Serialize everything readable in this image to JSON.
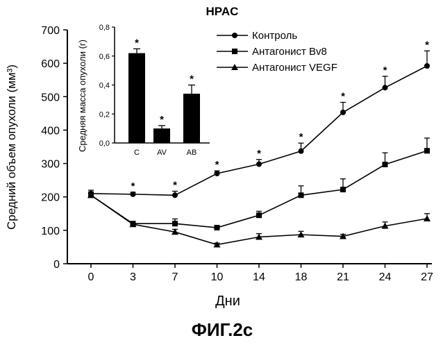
{
  "chart_data": [
    {
      "type": "line",
      "title": "HPAC",
      "xlabel": "Дни",
      "ylabel": "Средний объем опухоли (мм³)",
      "categories": [
        "0",
        "3",
        "7",
        "10",
        "14",
        "18",
        "21",
        "24",
        "27"
      ],
      "y_ticks": [
        "0",
        "100",
        "200",
        "300",
        "400",
        "500",
        "600",
        "700"
      ],
      "ylim": [
        0,
        700
      ],
      "grid": false,
      "legend": "top-right",
      "series": [
        {
          "name": "Контроль",
          "marker": "circle",
          "values": [
            210,
            208,
            205,
            270,
            298,
            337,
            453,
            527,
            592
          ],
          "errors": [
            10,
            6,
            12,
            8,
            14,
            24,
            30,
            34,
            45
          ],
          "significant": [
            false,
            true,
            true,
            true,
            true,
            true,
            true,
            true,
            true
          ]
        },
        {
          "name": "Антагонист Bv8",
          "marker": "square",
          "values": [
            205,
            120,
            120,
            108,
            145,
            205,
            222,
            297,
            338
          ],
          "errors": [
            10,
            6,
            14,
            6,
            12,
            28,
            32,
            35,
            38
          ],
          "significant": [
            false,
            false,
            false,
            false,
            false,
            false,
            false,
            false,
            false
          ]
        },
        {
          "name": "Антагонист VEGF",
          "marker": "triangle",
          "values": [
            205,
            118,
            95,
            57,
            80,
            87,
            82,
            113,
            135
          ],
          "errors": [
            10,
            5,
            8,
            5,
            10,
            10,
            6,
            12,
            15
          ],
          "significant": [
            false,
            false,
            false,
            false,
            false,
            false,
            false,
            false,
            false
          ]
        }
      ]
    },
    {
      "type": "bar",
      "ylabel": "Средняя масса опухоли (г)",
      "categories": [
        "C",
        "AV",
        "AB"
      ],
      "values": [
        0.62,
        0.1,
        0.34
      ],
      "errors": [
        0.03,
        0.02,
        0.06
      ],
      "significant": [
        true,
        true,
        true
      ],
      "y_ticks": [
        "0,0",
        "0,2",
        "0,4",
        "0,6",
        "0,8"
      ],
      "ylim": [
        0,
        0.8
      ]
    }
  ],
  "significance_mark": "*",
  "figure_caption": "ФИГ.2с"
}
